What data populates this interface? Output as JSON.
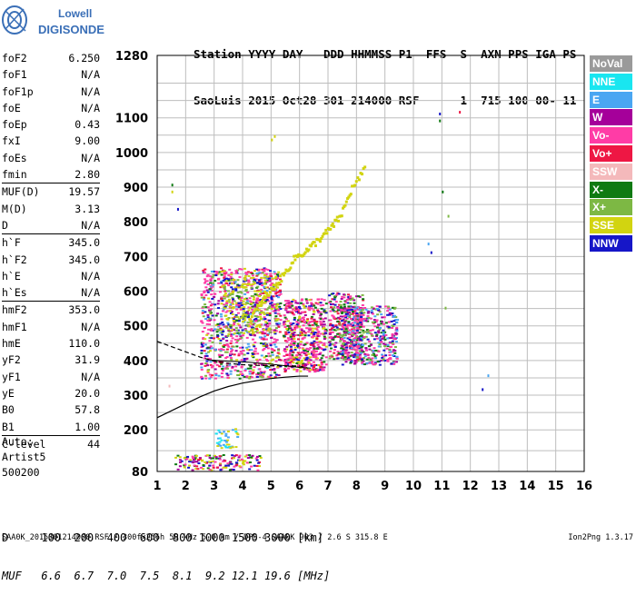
{
  "logo": {
    "line1": "Lowell",
    "line2": "DIGISONDE",
    "color": "#3a6fb7"
  },
  "header": {
    "labels": "Station YYYY DAY   DDD HHMMSS P1  FFS  S  AXN PPS IGA PS",
    "values": "SaoLuis 2015 Oct28 301 214000 RSF      1  715 100 00- 11"
  },
  "params": [
    {
      "name": "foF2",
      "value": "6.250"
    },
    {
      "name": "foF1",
      "value": "N/A"
    },
    {
      "name": "foF1p",
      "value": "N/A"
    },
    {
      "name": "foE",
      "value": "N/A"
    },
    {
      "name": "foEp",
      "value": "0.43"
    },
    {
      "name": "fxI",
      "value": "9.00"
    },
    {
      "name": "foEs",
      "value": "N/A"
    },
    {
      "name": "fmin",
      "value": "2.80"
    },
    {
      "sep": true
    },
    {
      "name": "MUF(D)",
      "value": "19.57"
    },
    {
      "name": "M(D)",
      "value": "3.13"
    },
    {
      "name": "D",
      "value": "N/A"
    },
    {
      "sep": true
    },
    {
      "name": "h`F",
      "value": "345.0"
    },
    {
      "name": "h`F2",
      "value": "345.0"
    },
    {
      "name": "h`E",
      "value": "N/A"
    },
    {
      "name": "h`Es",
      "value": "N/A"
    },
    {
      "sep": true
    },
    {
      "name": "hmF2",
      "value": "353.0"
    },
    {
      "name": "hmF1",
      "value": "N/A"
    },
    {
      "name": "hmE",
      "value": "110.0"
    },
    {
      "name": "yF2",
      "value": "31.9"
    },
    {
      "name": "yF1",
      "value": "N/A"
    },
    {
      "name": "yE",
      "value": "20.0"
    },
    {
      "name": "B0",
      "value": "57.8"
    },
    {
      "name": "B1",
      "value": "1.00"
    },
    {
      "sep": true
    },
    {
      "name": "C-level",
      "value": "44"
    }
  ],
  "auto": {
    "line1": "Auto:",
    "line2": "Artist5",
    "line3": "500200"
  },
  "legend": [
    {
      "label": "NoVal",
      "color": "#9a9a9a"
    },
    {
      "label": "NNE",
      "color": "#19e6f0"
    },
    {
      "label": "E",
      "color": "#4aa6f2"
    },
    {
      "label": "W",
      "color": "#a5009a"
    },
    {
      "label": "Vo-",
      "color": "#ff3ca6"
    },
    {
      "label": "Vo+",
      "color": "#ee1744"
    },
    {
      "label": "SSW",
      "color": "#f4b9bb"
    },
    {
      "label": "X-",
      "color": "#0f7a12"
    },
    {
      "label": "X+",
      "color": "#7db844"
    },
    {
      "label": "SSE",
      "color": "#d2d410"
    },
    {
      "label": "NNW",
      "color": "#1616c8"
    }
  ],
  "muf_table": {
    "d_row": "D     100  200  400  600  800 1000 1500 3000 [km]",
    "muf_row": "MUF   6.6  6.7  7.0  7.5  8.1  9.2 12.1 19.6 [MHz]"
  },
  "footer": {
    "left": "SAA0K_2015301214000.RSF / 300fx256h 50 kHz 5.0 km / DPS-4 SAA0K 903 / 2.6 S 315.8 E",
    "right": "Ion2Png 1.3.17"
  },
  "chart_data": {
    "type": "scatter",
    "title": "",
    "xlabel": "",
    "ylabel": "",
    "xlim": [
      1,
      16
    ],
    "ylim": [
      80,
      1280
    ],
    "x_ticks": [
      "1",
      "2",
      "3",
      "4",
      "5",
      "6",
      "7",
      "8",
      "9",
      "10",
      "11",
      "12",
      "13",
      "14",
      "15",
      "16"
    ],
    "y_ticks": [
      {
        "value": 80,
        "label": "80"
      },
      {
        "value": 200,
        "label": "200"
      },
      {
        "value": 300,
        "label": "300"
      },
      {
        "value": 400,
        "label": "400"
      },
      {
        "value": 500,
        "label": "500"
      },
      {
        "value": 600,
        "label": "600"
      },
      {
        "value": 700,
        "label": "700"
      },
      {
        "value": 800,
        "label": "800"
      },
      {
        "value": 900,
        "label": "900"
      },
      {
        "value": 1000,
        "label": "1000"
      },
      {
        "value": 1100,
        "label": "1100"
      },
      {
        "value": 1280,
        "label": "1280"
      }
    ],
    "y_grid": [
      80,
      140,
      200,
      250,
      300,
      350,
      400,
      450,
      500,
      550,
      600,
      650,
      700,
      750,
      800,
      850,
      900,
      950,
      1000,
      1050,
      1100,
      1150,
      1200,
      1280
    ],
    "grid": true,
    "clusters": [
      {
        "x": [
          2.5,
          5.3
        ],
        "y": [
          350,
          670
        ],
        "count": 950,
        "colors": [
          "#ff3ca6",
          "#ff3ca6",
          "#ff3ca6",
          "#ff3ca6",
          "#a5009a",
          "#1616c8",
          "#d2d410",
          "#0f7a12",
          "#ee1744",
          "#7db844",
          "#4aa6f2"
        ]
      },
      {
        "x": [
          5.4,
          6.9
        ],
        "y": [
          370,
          580
        ],
        "count": 520,
        "colors": [
          "#ff3ca6",
          "#ff3ca6",
          "#ff3ca6",
          "#ee1744",
          "#a5009a",
          "#1616c8",
          "#0f7a12",
          "#d2d410"
        ]
      },
      {
        "x": [
          7.0,
          8.2
        ],
        "y": [
          400,
          600
        ],
        "count": 300,
        "colors": [
          "#ff3ca6",
          "#ff3ca6",
          "#a5009a",
          "#1616c8",
          "#0f7a12",
          "#7db844",
          "#ee1744"
        ]
      },
      {
        "x": [
          7.4,
          9.4
        ],
        "y": [
          390,
          560
        ],
        "count": 480,
        "colors": [
          "#ff3ca6",
          "#ff3ca6",
          "#a5009a",
          "#0f7a12",
          "#1616c8",
          "#7db844",
          "#4aa6f2"
        ]
      },
      {
        "x": [
          3.2,
          5.2
        ],
        "y": [
          480,
          650
        ],
        "count": 200,
        "colors": [
          "#d2d410",
          "#d2d410",
          "#1616c8",
          "#7db844"
        ]
      },
      {
        "x": [
          1.6,
          4.6
        ],
        "y": [
          86,
          130
        ],
        "count": 150,
        "colors": [
          "#ee1744",
          "#ff3ca6",
          "#1616c8",
          "#0f7a12",
          "#d2d410",
          "#a5009a"
        ]
      },
      {
        "x": [
          3.0,
          3.8
        ],
        "y": [
          150,
          205
        ],
        "count": 40,
        "colors": [
          "#4aa6f2",
          "#d2d410",
          "#19e6f0"
        ]
      }
    ],
    "trace_sse": {
      "x": [
        4.2,
        4.6,
        5.0,
        5.4,
        5.8,
        6.2,
        6.6,
        7.0,
        7.4,
        7.8,
        8.3
      ],
      "y": [
        520,
        570,
        610,
        650,
        700,
        720,
        750,
        780,
        820,
        900,
        960
      ],
      "color": "#d2d410"
    },
    "sparse_points": [
      {
        "x": 1.5,
        "y": 910,
        "color": "#0f7a12"
      },
      {
        "x": 1.5,
        "y": 890,
        "color": "#d2d410"
      },
      {
        "x": 1.7,
        "y": 840,
        "color": "#1616c8"
      },
      {
        "x": 5.1,
        "y": 1050,
        "color": "#d2d410"
      },
      {
        "x": 5.0,
        "y": 1040,
        "color": "#d2d410"
      },
      {
        "x": 10.9,
        "y": 1115,
        "color": "#1616c8"
      },
      {
        "x": 10.9,
        "y": 1095,
        "color": "#0f7a12"
      },
      {
        "x": 11.6,
        "y": 1120,
        "color": "#ee1744"
      },
      {
        "x": 11.0,
        "y": 890,
        "color": "#0f7a12"
      },
      {
        "x": 11.2,
        "y": 820,
        "color": "#7db844"
      },
      {
        "x": 10.5,
        "y": 740,
        "color": "#4aa6f2"
      },
      {
        "x": 10.6,
        "y": 715,
        "color": "#1616c8"
      },
      {
        "x": 11.1,
        "y": 555,
        "color": "#7db844"
      },
      {
        "x": 12.6,
        "y": 360,
        "color": "#4aa6f2"
      },
      {
        "x": 12.4,
        "y": 320,
        "color": "#1616c8"
      },
      {
        "x": 1.4,
        "y": 330,
        "color": "#f4b9bb"
      }
    ],
    "profile_solid": {
      "x": [
        1.0,
        1.5,
        2.0,
        2.5,
        3.0,
        3.5,
        4.0,
        4.5,
        5.0,
        5.5,
        6.0,
        6.3
      ],
      "y": [
        235,
        255,
        275,
        295,
        312,
        325,
        335,
        342,
        348,
        352,
        355,
        355
      ]
    },
    "profile_dashed": {
      "x": [
        1.0,
        1.5,
        2.0,
        2.5,
        3.0,
        3.5,
        4.0,
        4.5,
        5.0,
        5.5,
        6.0,
        6.3
      ],
      "y": [
        455,
        440,
        425,
        410,
        398,
        392,
        388,
        386,
        385,
        385,
        384,
        378
      ]
    },
    "trace_line": {
      "x": [
        2.8,
        3.5,
        4.2,
        4.9,
        5.5,
        6.0,
        6.4
      ],
      "y": [
        402,
        398,
        395,
        390,
        385,
        380,
        378
      ]
    }
  }
}
